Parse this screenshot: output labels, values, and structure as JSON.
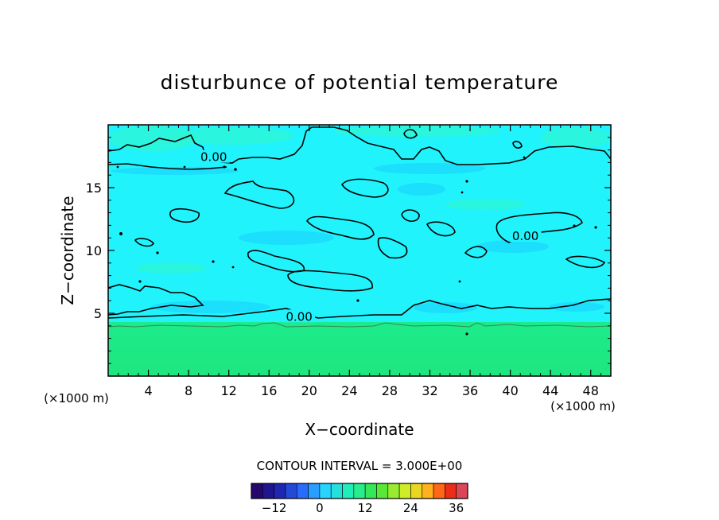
{
  "chart_data": {
    "type": "heatmap",
    "title": "disturbunce of potential temperature",
    "xlabel": "X−coordinate",
    "ylabel": "Z−coordinate",
    "x_unit": "(×1000 m)",
    "z_unit": "(×1000 m)",
    "xlim": [
      0,
      50
    ],
    "ylim": [
      0,
      20
    ],
    "x_ticks": [
      4,
      8,
      12,
      16,
      20,
      24,
      28,
      32,
      36,
      40,
      44,
      48
    ],
    "y_ticks": [
      5,
      10,
      15
    ],
    "contour_interval_text": "CONTOUR INTERVAL = 3.000E+00",
    "contour_interval": 3.0,
    "contour_labels": [
      {
        "text": "0.00",
        "x": 10.5,
        "z": 17.3
      },
      {
        "text": "0.00",
        "x": 41.5,
        "z": 11.0
      },
      {
        "text": "0.00",
        "x": 19.0,
        "z": 4.6
      }
    ],
    "colorbar": {
      "min": -18,
      "max": 39,
      "ticks": [
        -12,
        0,
        12,
        24,
        36
      ],
      "tick_labels": [
        "−12",
        "0",
        "12",
        "24",
        "36"
      ]
    },
    "field_summary": {
      "upper_region": "near 0 to slightly negative disturbance (cyan)",
      "boundary_z": 4.6,
      "lower_region": "slightly positive disturbance (green)"
    },
    "colors": {
      "upper_field": "#21f3fd",
      "patch_light": "#2ef5d3",
      "patch_blue": "#1ad6fb",
      "lower_field": "#1de985",
      "contour": "#000000",
      "frame": "#000000"
    }
  }
}
